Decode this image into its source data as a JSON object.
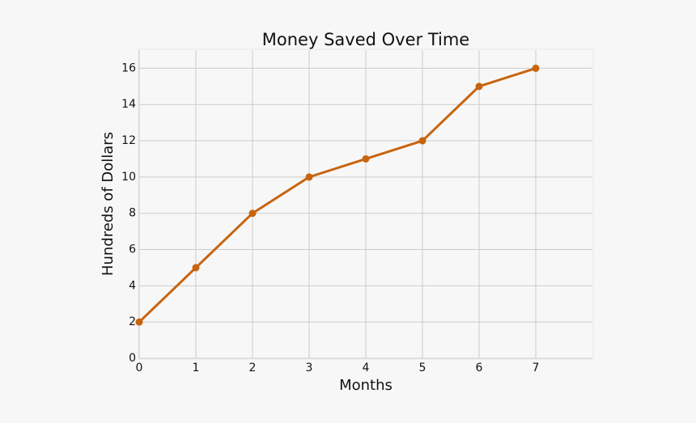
{
  "chart_data": {
    "type": "line",
    "title": "Money Saved Over Time",
    "x_label": "Months",
    "y_label": "Hundreds of Dollars",
    "x": [
      0,
      1,
      2,
      3,
      4,
      5,
      6,
      7
    ],
    "values": [
      2,
      5,
      8,
      10,
      11,
      12,
      15,
      16
    ],
    "color": "#c8640f",
    "xlim": [
      0,
      8
    ],
    "xticks": [
      0,
      1,
      2,
      3,
      4,
      5,
      6,
      7
    ],
    "ylim": [
      0,
      17
    ],
    "yticks": [
      0,
      2,
      4,
      6,
      8,
      10,
      12,
      14,
      16
    ],
    "grid": true,
    "markers": true
  }
}
